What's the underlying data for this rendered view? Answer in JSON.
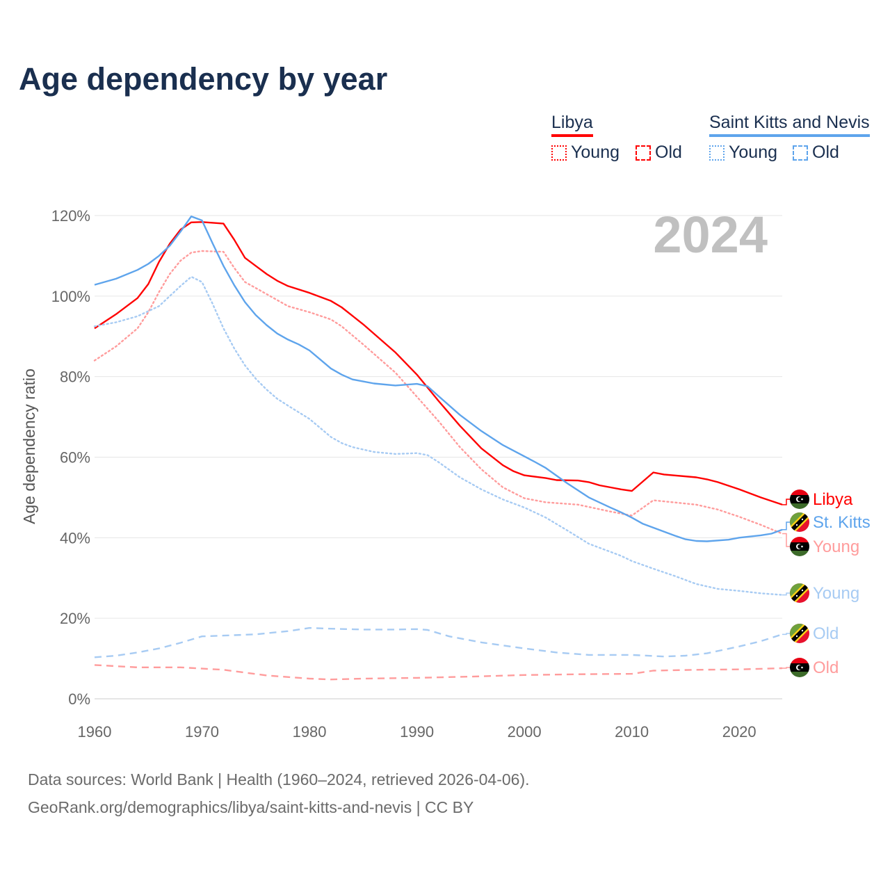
{
  "title": "Age dependency by year",
  "legend": {
    "countries": [
      {
        "name": "Libya",
        "color": "#ff0000",
        "items": [
          "Young",
          "Old"
        ]
      },
      {
        "name": "Saint Kitts and Nevis",
        "color": "#5ea4ec",
        "items": [
          "Young",
          "Old"
        ]
      }
    ]
  },
  "year_label": "2024",
  "sources": {
    "line1": "Data sources: World Bank | Health (1960–2024, retrieved 2026-04-06).",
    "line2": "GeoRank.org/demographics/libya/saint-kitts-and-nevis | CC BY"
  },
  "chart_data": {
    "type": "line",
    "title": "Age dependency by year",
    "xlabel": "",
    "ylabel": "Age dependency ratio",
    "xlim": [
      1960,
      2024
    ],
    "ylim": [
      0,
      120
    ],
    "x_ticks": [
      "1960",
      "1970",
      "1980",
      "1990",
      "2000",
      "2010",
      "2020"
    ],
    "y_ticks": [
      "0%",
      "20%",
      "40%",
      "60%",
      "80%",
      "100%",
      "120%"
    ],
    "grid": true,
    "series": [
      {
        "name": "Libya",
        "end_label": "Libya",
        "country": "libya",
        "style": "solid",
        "color": "#ff0000",
        "points": [
          [
            1960,
            92
          ],
          [
            1962,
            95.5
          ],
          [
            1964,
            99.5
          ],
          [
            1965,
            103
          ],
          [
            1966,
            108.5
          ],
          [
            1967,
            113
          ],
          [
            1968,
            116.5
          ],
          [
            1969,
            118.3
          ],
          [
            1970,
            118.4
          ],
          [
            1972,
            118
          ],
          [
            1973,
            114
          ],
          [
            1974,
            109.5
          ],
          [
            1975,
            107.5
          ],
          [
            1976,
            105.5
          ],
          [
            1977,
            103.8
          ],
          [
            1978,
            102.5
          ],
          [
            1980,
            100.8
          ],
          [
            1982,
            98.8
          ],
          [
            1983,
            97.2
          ],
          [
            1985,
            93
          ],
          [
            1988,
            86
          ],
          [
            1990,
            80.5
          ],
          [
            1992,
            74
          ],
          [
            1994,
            67.8
          ],
          [
            1996,
            62.2
          ],
          [
            1998,
            58
          ],
          [
            1999,
            56.5
          ],
          [
            2000,
            55.5
          ],
          [
            2002,
            54.8
          ],
          [
            2003,
            54.3
          ],
          [
            2005,
            54.2
          ],
          [
            2006,
            53.8
          ],
          [
            2007,
            53
          ],
          [
            2009,
            52
          ],
          [
            2010,
            51.6
          ],
          [
            2012,
            56.2
          ],
          [
            2013,
            55.7
          ],
          [
            2016,
            55
          ],
          [
            2017,
            54.5
          ],
          [
            2018,
            53.8
          ],
          [
            2020,
            52
          ],
          [
            2022,
            50
          ],
          [
            2024,
            48.2
          ]
        ]
      },
      {
        "name": "Libya Young",
        "end_label": "Young",
        "country": "libya",
        "style": "dotted",
        "color": "#ff9c9c",
        "points": [
          [
            1960,
            84
          ],
          [
            1962,
            87.5
          ],
          [
            1964,
            92
          ],
          [
            1965,
            96
          ],
          [
            1966,
            101
          ],
          [
            1967,
            105.5
          ],
          [
            1968,
            108.8
          ],
          [
            1969,
            110.8
          ],
          [
            1970,
            111.2
          ],
          [
            1972,
            111
          ],
          [
            1973,
            107
          ],
          [
            1974,
            103.5
          ],
          [
            1976,
            100.5
          ],
          [
            1978,
            97.5
          ],
          [
            1980,
            96
          ],
          [
            1982,
            94.2
          ],
          [
            1983,
            92.5
          ],
          [
            1985,
            88
          ],
          [
            1988,
            81
          ],
          [
            1990,
            75
          ],
          [
            1992,
            69
          ],
          [
            1994,
            62.5
          ],
          [
            1996,
            57
          ],
          [
            1998,
            52.5
          ],
          [
            2000,
            49.8
          ],
          [
            2002,
            48.8
          ],
          [
            2005,
            48.2
          ],
          [
            2008,
            46.5
          ],
          [
            2010,
            45.5
          ],
          [
            2012,
            49.3
          ],
          [
            2016,
            48.2
          ],
          [
            2018,
            47
          ],
          [
            2020,
            45.2
          ],
          [
            2022,
            43.2
          ],
          [
            2024,
            41
          ]
        ]
      },
      {
        "name": "Libya Old",
        "end_label": "Old",
        "country": "libya",
        "style": "dashed",
        "color": "#ff9c9c",
        "points": [
          [
            1960,
            8.4
          ],
          [
            1964,
            7.8
          ],
          [
            1968,
            7.8
          ],
          [
            1972,
            7.2
          ],
          [
            1976,
            5.8
          ],
          [
            1980,
            5.0
          ],
          [
            1982,
            4.8
          ],
          [
            1985,
            5.0
          ],
          [
            1990,
            5.2
          ],
          [
            1995,
            5.5
          ],
          [
            2000,
            5.9
          ],
          [
            2005,
            6.1
          ],
          [
            2010,
            6.2
          ],
          [
            2012,
            7.0
          ],
          [
            2016,
            7.2
          ],
          [
            2020,
            7.3
          ],
          [
            2024,
            7.6
          ]
        ]
      },
      {
        "name": "Saint Kitts and Nevis",
        "end_label": "St. Kitts",
        "country": "skn",
        "style": "solid",
        "color": "#5ea4ec",
        "points": [
          [
            1960,
            102.8
          ],
          [
            1962,
            104.3
          ],
          [
            1964,
            106.5
          ],
          [
            1965,
            108
          ],
          [
            1966,
            110
          ],
          [
            1967,
            112.5
          ],
          [
            1968,
            116
          ],
          [
            1969,
            119.8
          ],
          [
            1970,
            118.8
          ],
          [
            1971,
            113
          ],
          [
            1972,
            107.5
          ],
          [
            1973,
            102.7
          ],
          [
            1974,
            98.5
          ],
          [
            1975,
            95.3
          ],
          [
            1976,
            92.8
          ],
          [
            1977,
            90.7
          ],
          [
            1978,
            89.2
          ],
          [
            1979,
            88
          ],
          [
            1980,
            86.5
          ],
          [
            1982,
            82
          ],
          [
            1983,
            80.5
          ],
          [
            1984,
            79.3
          ],
          [
            1986,
            78.3
          ],
          [
            1988,
            77.8
          ],
          [
            1990,
            78.2
          ],
          [
            1991,
            77.6
          ],
          [
            1992,
            75.2
          ],
          [
            1994,
            70.5
          ],
          [
            1996,
            66.5
          ],
          [
            1998,
            63
          ],
          [
            2000,
            60.2
          ],
          [
            2001,
            58.8
          ],
          [
            2002,
            57.3
          ],
          [
            2004,
            53.5
          ],
          [
            2006,
            50
          ],
          [
            2008,
            47.5
          ],
          [
            2009,
            46.3
          ],
          [
            2010,
            45
          ],
          [
            2011,
            43.5
          ],
          [
            2013,
            41.5
          ],
          [
            2014,
            40.5
          ],
          [
            2015,
            39.6
          ],
          [
            2016,
            39.2
          ],
          [
            2017,
            39.1
          ],
          [
            2019,
            39.5
          ],
          [
            2020,
            40
          ],
          [
            2022,
            40.6
          ],
          [
            2023,
            41
          ],
          [
            2024,
            42
          ]
        ]
      },
      {
        "name": "Saint Kitts and Nevis Young",
        "end_label": "Young",
        "country": "skn",
        "style": "dotted",
        "color": "#a7cbf3",
        "points": [
          [
            1960,
            92.5
          ],
          [
            1962,
            93.5
          ],
          [
            1964,
            95
          ],
          [
            1966,
            97.5
          ],
          [
            1967,
            100
          ],
          [
            1968,
            102.5
          ],
          [
            1969,
            104.8
          ],
          [
            1970,
            103.5
          ],
          [
            1971,
            98
          ],
          [
            1972,
            92
          ],
          [
            1973,
            87
          ],
          [
            1974,
            82.8
          ],
          [
            1975,
            79.5
          ],
          [
            1976,
            76.8
          ],
          [
            1977,
            74.5
          ],
          [
            1978,
            72.8
          ],
          [
            1980,
            69.5
          ],
          [
            1982,
            65
          ],
          [
            1983,
            63.5
          ],
          [
            1984,
            62.5
          ],
          [
            1986,
            61.3
          ],
          [
            1988,
            60.8
          ],
          [
            1990,
            61
          ],
          [
            1991,
            60.5
          ],
          [
            1992,
            58.8
          ],
          [
            1994,
            55
          ],
          [
            1996,
            52
          ],
          [
            1998,
            49.5
          ],
          [
            2000,
            47.5
          ],
          [
            2002,
            45
          ],
          [
            2004,
            41.8
          ],
          [
            2006,
            38.5
          ],
          [
            2008,
            36.5
          ],
          [
            2009,
            35.5
          ],
          [
            2010,
            34.2
          ],
          [
            2012,
            32.3
          ],
          [
            2014,
            30.5
          ],
          [
            2016,
            28.5
          ],
          [
            2018,
            27.3
          ],
          [
            2020,
            26.8
          ],
          [
            2022,
            26.2
          ],
          [
            2024,
            25.8
          ]
        ]
      },
      {
        "name": "Saint Kitts and Nevis Old",
        "end_label": "Old",
        "country": "skn",
        "style": "dashed",
        "color": "#a7cbf3",
        "points": [
          [
            1960,
            10.3
          ],
          [
            1962,
            10.7
          ],
          [
            1964,
            11.5
          ],
          [
            1966,
            12.5
          ],
          [
            1968,
            13.9
          ],
          [
            1970,
            15.5
          ],
          [
            1972,
            15.7
          ],
          [
            1975,
            16
          ],
          [
            1978,
            16.8
          ],
          [
            1980,
            17.6
          ],
          [
            1982,
            17.4
          ],
          [
            1985,
            17.2
          ],
          [
            1988,
            17.2
          ],
          [
            1990,
            17.3
          ],
          [
            1991,
            17.1
          ],
          [
            1993,
            15.5
          ],
          [
            1996,
            14
          ],
          [
            2000,
            12.5
          ],
          [
            2003,
            11.5
          ],
          [
            2006,
            10.9
          ],
          [
            2010,
            10.9
          ],
          [
            2013,
            10.5
          ],
          [
            2015,
            10.7
          ],
          [
            2017,
            11.3
          ],
          [
            2020,
            13
          ],
          [
            2022,
            14.3
          ],
          [
            2024,
            16
          ]
        ]
      }
    ]
  }
}
